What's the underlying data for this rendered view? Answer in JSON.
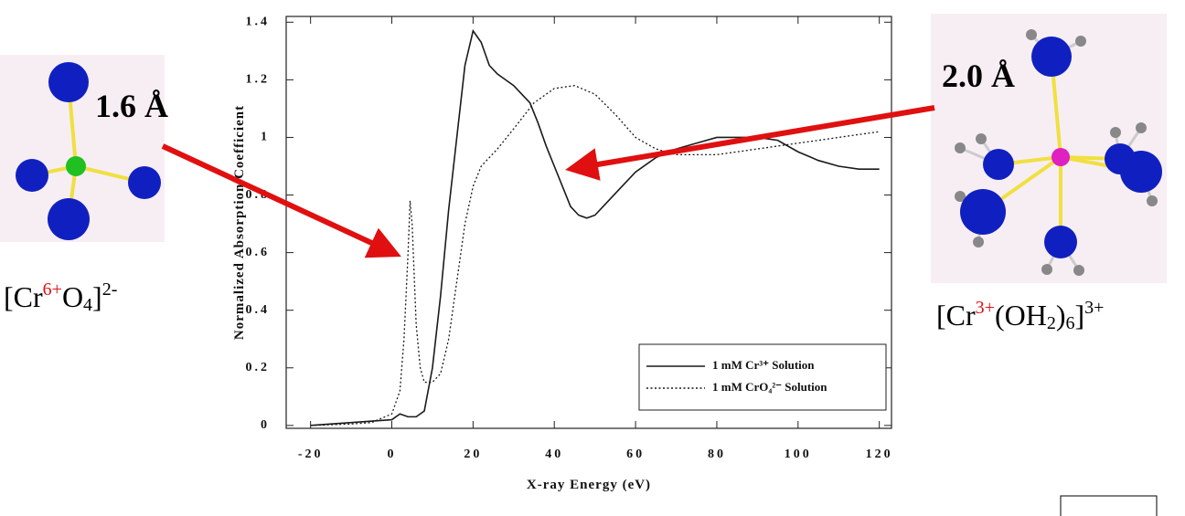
{
  "chart_data": {
    "type": "line",
    "xlabel": "X-ray Energy (eV)",
    "ylabel": "Normalized Absorption Coefficient",
    "xlim": [
      -26,
      123
    ],
    "ylim": [
      -0.01,
      1.42
    ],
    "xticks": [
      -20,
      0,
      20,
      40,
      60,
      80,
      100,
      120
    ],
    "yticks": [
      0,
      0.2,
      0.4,
      0.6,
      0.8,
      1,
      1.2,
      1.4
    ],
    "grid": false,
    "legend": "lower right",
    "series": [
      {
        "name": "1 mM Cr³⁺ Solution",
        "color": "#1a1a1a",
        "line_style": "solid",
        "x": [
          -20,
          -10,
          0,
          2,
          4,
          6,
          8,
          10,
          12,
          14,
          16,
          18,
          20,
          22,
          24,
          26,
          28,
          30,
          32,
          34,
          36,
          38,
          40,
          42,
          44,
          46,
          48,
          50,
          52,
          56,
          60,
          65,
          70,
          75,
          80,
          85,
          90,
          95,
          100,
          105,
          110,
          115,
          120
        ],
        "values": [
          0,
          0.01,
          0.02,
          0.04,
          0.03,
          0.03,
          0.05,
          0.2,
          0.45,
          0.75,
          1.0,
          1.25,
          1.37,
          1.33,
          1.25,
          1.22,
          1.2,
          1.18,
          1.15,
          1.12,
          1.05,
          0.97,
          0.9,
          0.83,
          0.76,
          0.73,
          0.72,
          0.73,
          0.76,
          0.82,
          0.88,
          0.93,
          0.96,
          0.98,
          1.0,
          1.0,
          1.0,
          0.99,
          0.95,
          0.92,
          0.9,
          0.89,
          0.89
        ]
      },
      {
        "name": "1 mM CrO₄²⁻ Solution",
        "color": "#1a1a1a",
        "line_style": "dotted",
        "x": [
          -20,
          -10,
          -5,
          0,
          2,
          3,
          4,
          4.5,
          5,
          6,
          7,
          8,
          10,
          12,
          14,
          16,
          18,
          20,
          22,
          26,
          30,
          35,
          40,
          45,
          50,
          55,
          60,
          65,
          70,
          80,
          90,
          100,
          110,
          120
        ],
        "values": [
          0,
          0.005,
          0.01,
          0.04,
          0.12,
          0.3,
          0.6,
          0.78,
          0.7,
          0.35,
          0.2,
          0.15,
          0.15,
          0.18,
          0.3,
          0.5,
          0.7,
          0.83,
          0.9,
          0.96,
          1.03,
          1.12,
          1.17,
          1.18,
          1.15,
          1.08,
          1.0,
          0.96,
          0.94,
          0.94,
          0.96,
          0.98,
          1.0,
          1.02
        ]
      }
    ],
    "annotations": {
      "left_bond": "1.6 Å",
      "right_bond": "2.0 Å",
      "left_formula": [
        "[Cr",
        "6+",
        "O",
        "4",
        "]",
        "2-"
      ],
      "right_formula": [
        "[Cr",
        "3+",
        "(OH",
        "2",
        ")",
        "6",
        "]",
        "3+"
      ]
    }
  }
}
